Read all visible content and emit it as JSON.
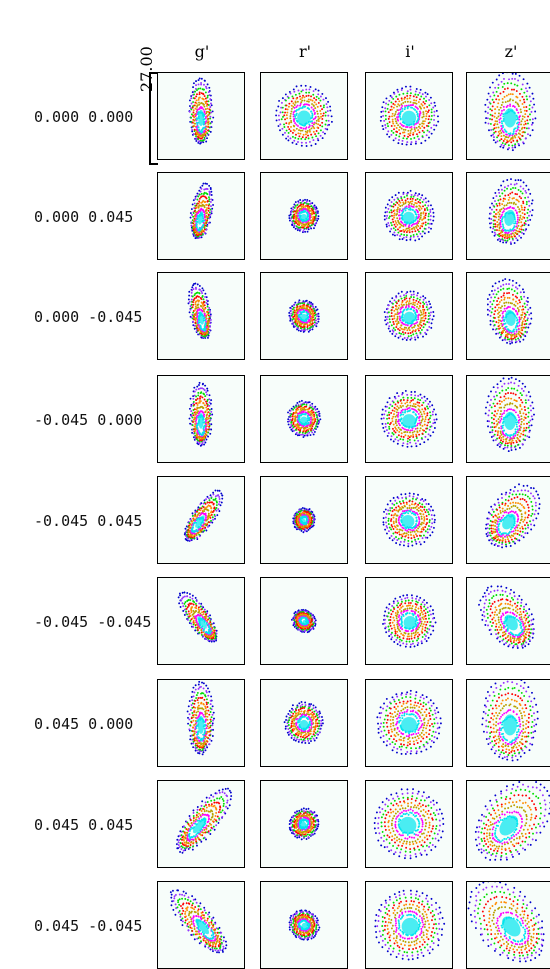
{
  "columns": [
    "g'",
    "r'",
    "i'",
    "z'"
  ],
  "rows": [
    "0.000 0.000",
    "0.000 0.045",
    "0.000 -0.045",
    "-0.045 0.000",
    "-0.045 0.045",
    "-0.045 -0.045",
    "0.045 0.000",
    "0.045 0.045",
    "0.045 -0.045"
  ],
  "scale_label": "27.00",
  "colors": [
    "#00e5ee",
    "#ff00ff",
    "#b8a000",
    "#ff0000",
    "#00dd00",
    "#ff8c00",
    "#9933ff",
    "#0000cc"
  ]
}
